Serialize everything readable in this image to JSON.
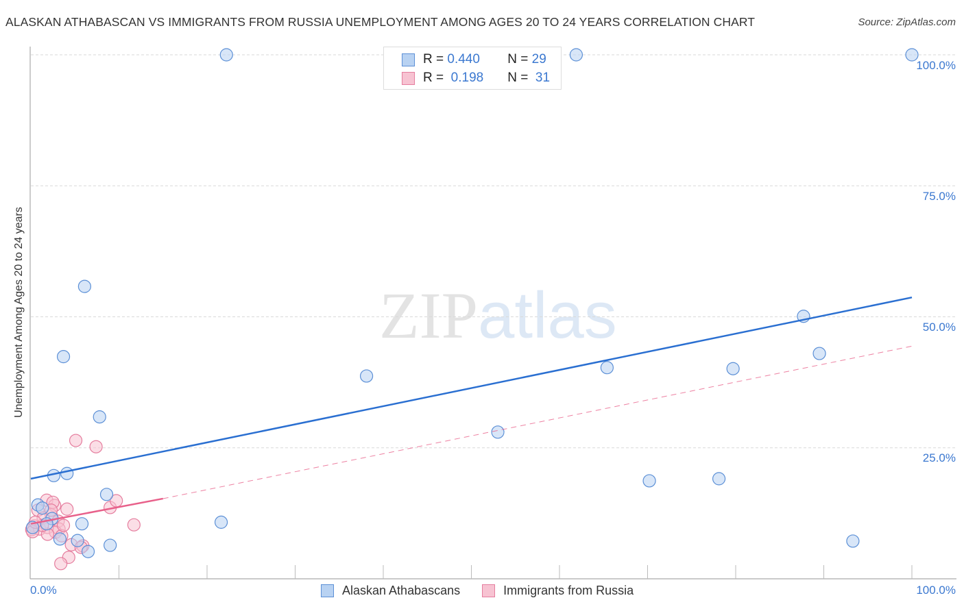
{
  "header": {
    "title": "ALASKAN ATHABASCAN VS IMMIGRANTS FROM RUSSIA UNEMPLOYMENT AMONG AGES 20 TO 24 YEARS CORRELATION CHART",
    "source": "Source: ZipAtlas.com"
  },
  "watermark": {
    "zip": "ZIP",
    "atlas": "atlas"
  },
  "axes": {
    "ylabel": "Unemployment Among Ages 20 to 24 years",
    "yticks": [
      "100.0%",
      "75.0%",
      "50.0%",
      "25.0%"
    ],
    "xtick_left": "0.0%",
    "xtick_right": "100.0%"
  },
  "legend_top": {
    "rows": [
      {
        "r_label": "R =",
        "r_value": "0.440",
        "n_label": "N =",
        "n_value": "29"
      },
      {
        "r_label": "R =",
        "r_value": " 0.198",
        "n_label": "N =",
        "n_value": " 31"
      }
    ]
  },
  "legend_bottom": {
    "items": [
      {
        "label": "Alaskan Athabascans"
      },
      {
        "label": "Immigrants from Russia"
      }
    ]
  },
  "colors": {
    "blue_fill": "#b8d2f2",
    "blue_stroke": "#5b8fd6",
    "blue_line": "#2a6fd1",
    "pink_fill": "#f7c3d2",
    "pink_stroke": "#e57d9e",
    "pink_line": "#e8608a",
    "axis_text": "#3b78d0"
  },
  "chart_data": {
    "type": "scatter",
    "title": "ALASKAN ATHABASCAN VS IMMIGRANTS FROM RUSSIA UNEMPLOYMENT AMONG AGES 20 TO 24 YEARS CORRELATION CHART",
    "xlabel": "",
    "ylabel": "Unemployment Among Ages 20 to 24 years",
    "xlim": [
      0,
      100
    ],
    "ylim": [
      0,
      100
    ],
    "x_ticks": [
      "0.0%",
      "100.0%"
    ],
    "y_ticks": [
      "25.0%",
      "50.0%",
      "75.0%",
      "100.0%"
    ],
    "grid": "horizontal dashed",
    "legend_position": "bottom",
    "series": [
      {
        "name": "Alaskan Athabascans",
        "R": 0.44,
        "N": 29,
        "trend": {
          "x0": 0,
          "y0": 19.1,
          "x1": 100,
          "y1": 53.7
        },
        "points": [
          [
            22.2,
            100.0
          ],
          [
            61.9,
            100.0
          ],
          [
            100.0,
            100.0
          ],
          [
            6.1,
            55.8
          ],
          [
            3.7,
            42.4
          ],
          [
            7.8,
            30.9
          ],
          [
            38.1,
            38.7
          ],
          [
            87.7,
            50.1
          ],
          [
            89.5,
            43.0
          ],
          [
            65.4,
            40.3
          ],
          [
            79.7,
            40.1
          ],
          [
            53.0,
            28.0
          ],
          [
            70.2,
            18.7
          ],
          [
            78.1,
            19.1
          ],
          [
            93.3,
            7.2
          ],
          [
            2.6,
            19.7
          ],
          [
            4.1,
            20.1
          ],
          [
            8.6,
            16.1
          ],
          [
            21.6,
            10.8
          ],
          [
            5.8,
            10.5
          ],
          [
            9.0,
            6.4
          ],
          [
            6.5,
            5.2
          ],
          [
            5.3,
            7.3
          ],
          [
            3.3,
            7.6
          ],
          [
            0.8,
            14.1
          ],
          [
            1.3,
            13.5
          ],
          [
            2.4,
            11.5
          ],
          [
            0.2,
            9.8
          ],
          [
            1.8,
            10.5
          ]
        ]
      },
      {
        "name": "Immigrants from Russia",
        "R": 0.198,
        "N": 31,
        "trend": {
          "x0": 0,
          "y0": 10.5,
          "x1": 15,
          "y1": 15.3,
          "dashed_to_x": 100,
          "dashed_to_y": 44.4
        },
        "points": [
          [
            5.1,
            26.4
          ],
          [
            7.4,
            25.2
          ],
          [
            1.8,
            15.0
          ],
          [
            2.7,
            14.0
          ],
          [
            2.5,
            14.6
          ],
          [
            4.1,
            13.3
          ],
          [
            9.0,
            13.6
          ],
          [
            9.7,
            14.9
          ],
          [
            11.7,
            10.3
          ],
          [
            2.3,
            12.2
          ],
          [
            0.8,
            13.1
          ],
          [
            1.4,
            11.6
          ],
          [
            3.1,
            11.0
          ],
          [
            0.4,
            10.1
          ],
          [
            0.1,
            9.4
          ],
          [
            1.0,
            9.5
          ],
          [
            1.9,
            9.8
          ],
          [
            0.2,
            9.0
          ],
          [
            3.2,
            9.5
          ],
          [
            2.8,
            8.9
          ],
          [
            1.9,
            8.5
          ],
          [
            3.5,
            8.2
          ],
          [
            4.6,
            6.5
          ],
          [
            5.9,
            6.3
          ],
          [
            5.7,
            6.0
          ],
          [
            4.3,
            4.1
          ],
          [
            3.4,
            2.9
          ],
          [
            1.3,
            10.2
          ],
          [
            0.5,
            10.8
          ],
          [
            2.3,
            13.1
          ],
          [
            3.7,
            10.2
          ]
        ]
      }
    ]
  }
}
